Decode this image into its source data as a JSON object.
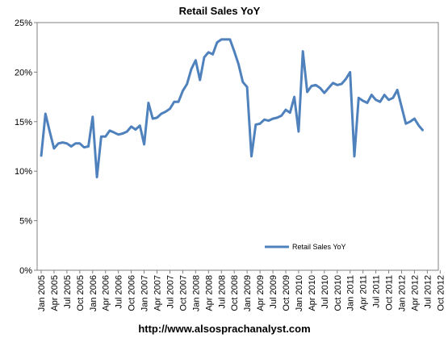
{
  "chart_data": {
    "type": "line",
    "title": "Retail Sales  YoY",
    "ylim": [
      0,
      25
    ],
    "y_ticks": [
      "0%",
      "5%",
      "10%",
      "15%",
      "20%",
      "25%"
    ],
    "x_tick_labels": [
      "Jan 2005",
      "Apr 2005",
      "Jul 2005",
      "Oct 2005",
      "Jan 2006",
      "Apr 2006",
      "Jul 2006",
      "Oct 2006",
      "Jan 2007",
      "Apr 2007",
      "Jul 2007",
      "Oct 2007",
      "Jan 2008",
      "Apr 2008",
      "Jul 2008",
      "Oct 2008",
      "Jan 2009",
      "Apr 2009",
      "Jul 2009",
      "Oct 2009",
      "Jan 2010",
      "Apr 2010",
      "Jul 2010",
      "Oct 2010",
      "Jan 2011",
      "Apr 2011",
      "Jul 2011",
      "Oct 2011",
      "Jan 2012",
      "Apr 2012",
      "Jul 2012",
      "Oct 2012"
    ],
    "legend_position": "bottom-right",
    "grid": false,
    "series": [
      {
        "name": "Retail Sales YoY",
        "color": "#4F81BD",
        "x": [
          "2005-01",
          "2005-02",
          "2005-03",
          "2005-04",
          "2005-05",
          "2005-06",
          "2005-07",
          "2005-08",
          "2005-09",
          "2005-10",
          "2005-11",
          "2005-12",
          "2006-01",
          "2006-02",
          "2006-03",
          "2006-04",
          "2006-05",
          "2006-06",
          "2006-07",
          "2006-08",
          "2006-09",
          "2006-10",
          "2006-11",
          "2006-12",
          "2007-01",
          "2007-02",
          "2007-03",
          "2007-04",
          "2007-05",
          "2007-06",
          "2007-07",
          "2007-08",
          "2007-09",
          "2007-10",
          "2007-11",
          "2007-12",
          "2008-01",
          "2008-02",
          "2008-03",
          "2008-04",
          "2008-05",
          "2008-06",
          "2008-07",
          "2008-08",
          "2008-09",
          "2008-10",
          "2008-11",
          "2008-12",
          "2009-01",
          "2009-02",
          "2009-03",
          "2009-04",
          "2009-05",
          "2009-06",
          "2009-07",
          "2009-08",
          "2009-09",
          "2009-10",
          "2009-11",
          "2009-12",
          "2010-01",
          "2010-02",
          "2010-03",
          "2010-04",
          "2010-05",
          "2010-06",
          "2010-07",
          "2010-08",
          "2010-09",
          "2010-10",
          "2010-11",
          "2010-12",
          "2011-01",
          "2011-02",
          "2011-03",
          "2011-04",
          "2011-05",
          "2011-06",
          "2011-07",
          "2011-08",
          "2011-09",
          "2011-10",
          "2011-11",
          "2011-12",
          "2012-01",
          "2012-02",
          "2012-03",
          "2012-04",
          "2012-05",
          "2012-06"
        ],
        "values": [
          11.5,
          15.8,
          14.0,
          12.3,
          12.8,
          12.9,
          12.8,
          12.5,
          12.8,
          12.8,
          12.4,
          12.5,
          15.5,
          9.4,
          13.5,
          13.5,
          14.1,
          13.9,
          13.7,
          13.8,
          14.0,
          14.5,
          14.2,
          14.6,
          12.7,
          16.9,
          15.3,
          15.4,
          15.8,
          16.0,
          16.3,
          17.0,
          17.0,
          18.1,
          18.8,
          20.3,
          21.2,
          19.2,
          21.5,
          22.0,
          21.8,
          23.0,
          23.3,
          23.3,
          23.3,
          22.1,
          20.8,
          19.0,
          18.5,
          11.5,
          14.7,
          14.8,
          15.2,
          15.1,
          15.3,
          15.4,
          15.6,
          16.2,
          15.9,
          17.5,
          14.0,
          22.1,
          18.0,
          18.6,
          18.7,
          18.4,
          17.9,
          18.4,
          18.9,
          18.7,
          18.8,
          19.3,
          20.0,
          11.5,
          17.4,
          17.1,
          16.9,
          17.7,
          17.2,
          17.0,
          17.7,
          17.2,
          17.4,
          18.2,
          16.5,
          14.8,
          15.0,
          15.3,
          14.6,
          14.1
        ]
      }
    ],
    "source_text": "http://www.alsosprachanalyst.com"
  }
}
